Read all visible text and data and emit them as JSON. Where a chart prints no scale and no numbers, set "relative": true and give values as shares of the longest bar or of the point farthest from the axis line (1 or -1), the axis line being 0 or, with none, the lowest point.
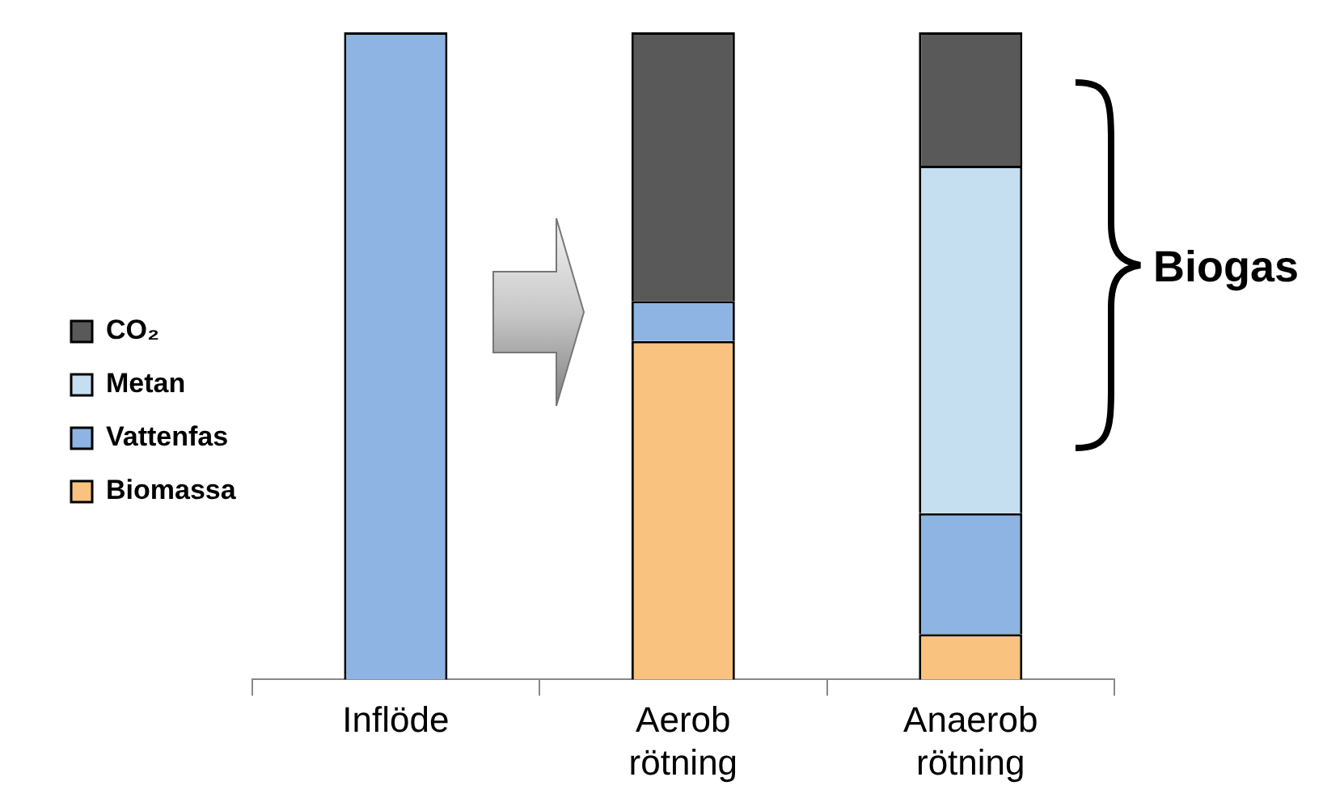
{
  "chart_data": {
    "type": "bar",
    "stacked": true,
    "relative": true,
    "categories": [
      "Inflöde",
      "Aerob rötning",
      "Anaerob rötning"
    ],
    "series": [
      {
        "name": "Biomassa",
        "color": "#f9c27e",
        "values": [
          null,
          0.523,
          0.07
        ]
      },
      {
        "name": "Vattenfas",
        "color": "#8db4e2",
        "values": [
          1.0,
          0.062,
          0.187
        ]
      },
      {
        "name": "Metan",
        "color": "#c6dff0",
        "values": [
          null,
          null,
          0.537
        ]
      },
      {
        "name": "CO₂",
        "color": "#595959",
        "values": [
          null,
          0.415,
          0.206
        ]
      }
    ],
    "legend": "left",
    "grid": false,
    "annotations": [
      "Biogas"
    ]
  }
}
